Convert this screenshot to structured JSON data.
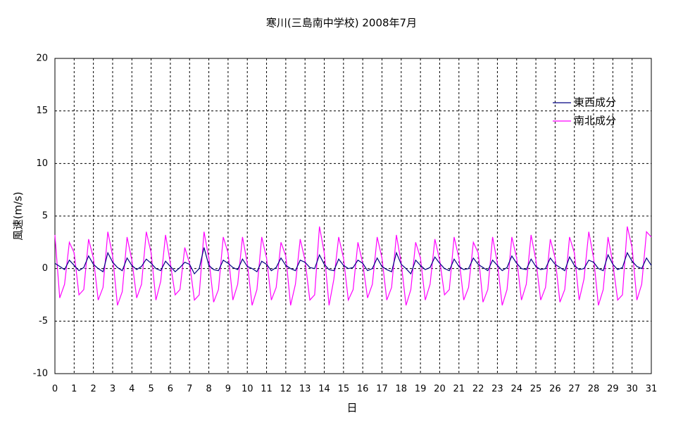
{
  "chart_data": {
    "type": "line",
    "title": "寒川(三島南中学校)  2008年7月",
    "xlabel": "日",
    "ylabel": "風速(m/s)",
    "x": [
      0,
      0.25,
      0.5,
      0.75,
      1,
      1.25,
      1.5,
      1.75,
      2,
      2.25,
      2.5,
      2.75,
      3,
      3.25,
      3.5,
      3.75,
      4,
      4.25,
      4.5,
      4.75,
      5,
      5.25,
      5.5,
      5.75,
      6,
      6.25,
      6.5,
      6.75,
      7,
      7.25,
      7.5,
      7.75,
      8,
      8.25,
      8.5,
      8.75,
      9,
      9.25,
      9.5,
      9.75,
      10,
      10.25,
      10.5,
      10.75,
      11,
      11.25,
      11.5,
      11.75,
      12,
      12.25,
      12.5,
      12.75,
      13,
      13.25,
      13.5,
      13.75,
      14,
      14.25,
      14.5,
      14.75,
      15,
      15.25,
      15.5,
      15.75,
      16,
      16.25,
      16.5,
      16.75,
      17,
      17.25,
      17.5,
      17.75,
      18,
      18.25,
      18.5,
      18.75,
      19,
      19.25,
      19.5,
      19.75,
      20,
      20.25,
      20.5,
      20.75,
      21,
      21.25,
      21.5,
      21.75,
      22,
      22.25,
      22.5,
      22.75,
      23,
      23.25,
      23.5,
      23.75,
      24,
      24.25,
      24.5,
      24.75,
      25,
      25.25,
      25.5,
      25.75,
      26,
      26.25,
      26.5,
      26.75,
      27,
      27.25,
      27.5,
      27.75,
      28,
      28.25,
      28.5,
      28.75,
      29,
      29.25,
      29.5,
      29.75,
      30,
      30.25,
      30.5,
      30.75,
      31
    ],
    "series": [
      {
        "name": "東西成分",
        "color": "#000080",
        "values": [
          0.5,
          0.2,
          -0.1,
          0.8,
          0.3,
          -0.2,
          0.1,
          1.2,
          0.4,
          0.0,
          -0.3,
          1.5,
          0.6,
          0.1,
          -0.2,
          1.0,
          0.3,
          -0.1,
          0.2,
          0.9,
          0.5,
          0.0,
          -0.2,
          0.7,
          0.2,
          -0.3,
          0.1,
          0.6,
          0.4,
          -0.5,
          0.0,
          2.0,
          0.3,
          -0.1,
          -0.2,
          0.8,
          0.5,
          0.1,
          -0.1,
          0.9,
          0.2,
          0.0,
          -0.3,
          0.7,
          0.4,
          -0.2,
          0.1,
          1.0,
          0.3,
          0.0,
          -0.2,
          0.8,
          0.6,
          0.1,
          0.0,
          1.3,
          0.4,
          -0.1,
          -0.2,
          0.9,
          0.3,
          0.0,
          0.1,
          0.8,
          0.5,
          -0.2,
          0.0,
          1.0,
          0.2,
          -0.1,
          -0.3,
          1.5,
          0.4,
          0.0,
          -0.5,
          0.8,
          0.3,
          -0.1,
          0.1,
          1.1,
          0.5,
          0.0,
          -0.2,
          0.9,
          0.2,
          -0.1,
          0.0,
          1.0,
          0.4,
          0.1,
          -0.2,
          0.8,
          0.3,
          -0.2,
          0.1,
          1.2,
          0.5,
          0.0,
          -0.1,
          0.9,
          0.2,
          -0.1,
          0.0,
          1.0,
          0.4,
          0.1,
          -0.2,
          1.1,
          0.3,
          -0.1,
          0.0,
          0.8,
          0.6,
          0.0,
          -0.2,
          1.3,
          0.4,
          -0.1,
          0.1,
          1.5,
          0.7,
          0.2,
          0.0,
          1.0,
          0.3
        ]
      },
      {
        "name": "南北成分",
        "color": "#ff00ff",
        "values": [
          3.2,
          -2.8,
          -1.5,
          2.5,
          1.5,
          -2.5,
          -2.0,
          2.8,
          1.0,
          -3.0,
          -1.8,
          3.5,
          1.2,
          -3.5,
          -2.2,
          3.0,
          0.8,
          -2.8,
          -1.5,
          3.5,
          1.5,
          -3.0,
          -1.2,
          3.2,
          0.5,
          -2.5,
          -2.0,
          2.0,
          0.5,
          -3.0,
          -2.5,
          3.5,
          1.0,
          -3.2,
          -2.0,
          3.0,
          1.5,
          -3.0,
          -1.5,
          3.0,
          0.5,
          -3.5,
          -2.0,
          3.0,
          1.0,
          -3.0,
          -1.8,
          2.5,
          1.2,
          -3.5,
          -1.5,
          2.8,
          0.8,
          -3.0,
          -2.5,
          4.0,
          1.5,
          -3.5,
          -1.0,
          3.0,
          1.0,
          -3.0,
          -2.0,
          2.5,
          0.5,
          -2.8,
          -1.5,
          3.0,
          1.0,
          -3.0,
          -1.8,
          3.2,
          0.5,
          -3.5,
          -2.0,
          2.5,
          1.0,
          -3.0,
          -1.5,
          2.8,
          0.8,
          -2.5,
          -2.0,
          3.0,
          1.0,
          -3.0,
          -1.8,
          2.5,
          1.5,
          -3.2,
          -2.0,
          3.0,
          0.5,
          -3.5,
          -2.0,
          3.0,
          1.0,
          -3.0,
          -1.5,
          3.2,
          0.8,
          -3.0,
          -1.8,
          2.8,
          1.0,
          -3.2,
          -2.0,
          3.0,
          1.5,
          -3.0,
          -1.0,
          3.5,
          1.0,
          -3.5,
          -2.0,
          3.0,
          0.5,
          -3.0,
          -2.5,
          4.0,
          2.0,
          -3.0,
          -1.5,
          3.5,
          3.0
        ]
      }
    ],
    "xlim": [
      0,
      31
    ],
    "xticks": [
      0,
      1,
      2,
      3,
      4,
      5,
      6,
      7,
      8,
      9,
      10,
      11,
      12,
      13,
      14,
      15,
      16,
      17,
      18,
      19,
      20,
      21,
      22,
      23,
      24,
      25,
      26,
      27,
      28,
      29,
      30,
      31
    ],
    "ylim": [
      -10,
      20
    ],
    "yticks": [
      -10,
      -5,
      0,
      5,
      10,
      15,
      20
    ],
    "grid": true,
    "legend": "upper right"
  }
}
